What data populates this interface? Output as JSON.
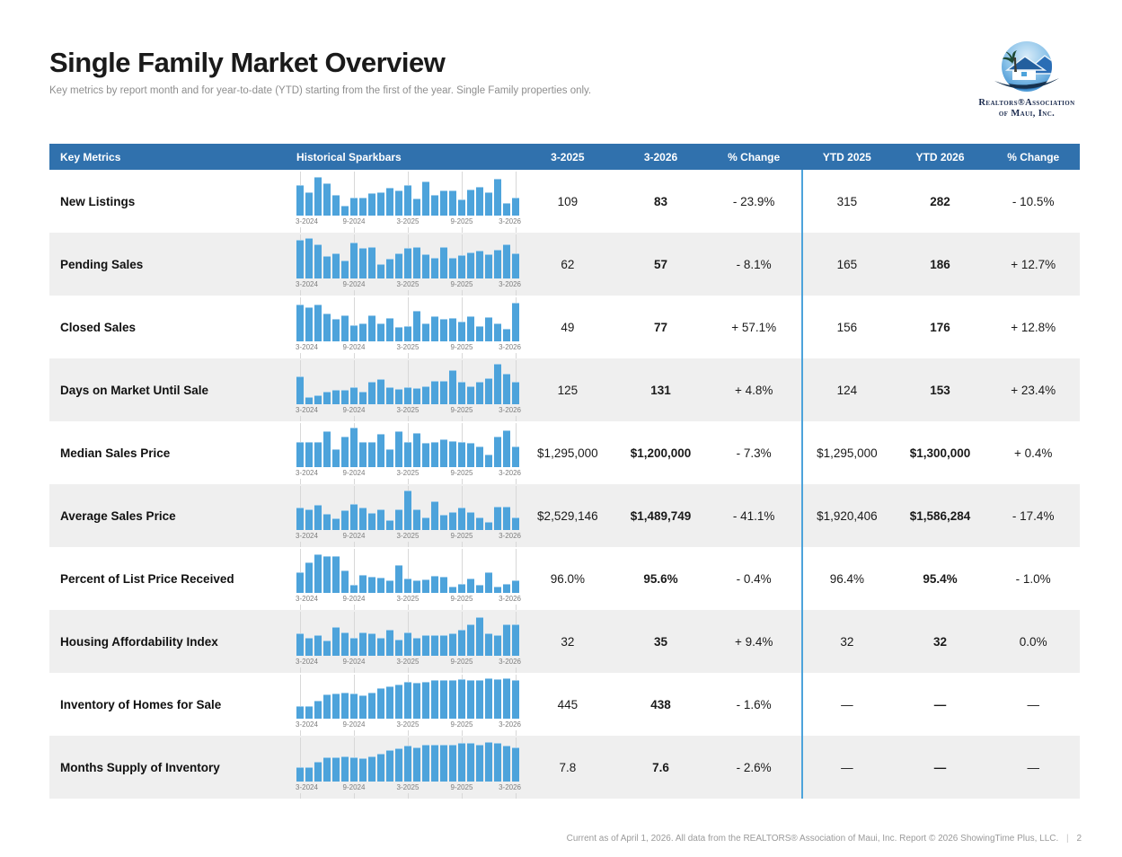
{
  "page": {
    "title": "Single Family Market Overview",
    "subtitle": "Key metrics by report month and for year-to-date (YTD) starting from the first of the year. Single Family properties only.",
    "footer": "Current as of April 1, 2026. All data from the REALTORS® Association of Maui, Inc. Report © 2026 ShowingTime Plus, LLC.",
    "footer_separator": "|",
    "page_number": "2"
  },
  "logo": {
    "line1": "Realtors®Association",
    "line2": "of Maui, Inc."
  },
  "colors": {
    "header_bg": "#3071ad",
    "bar_blue": "#4da3db",
    "row_alt_bg": "#efefef",
    "ytd_divider": "#4da3db"
  },
  "table": {
    "header": [
      "Key Metrics",
      "Historical Sparkbars",
      "3-2025",
      "3-2026",
      "% Change",
      "YTD 2025",
      "YTD 2026",
      "% Change"
    ],
    "spark_axis": [
      "3-2024",
      "9-2024",
      "3-2025",
      "9-2025",
      "3-2026"
    ],
    "rows": [
      {
        "metric": "New Listings",
        "month_prev": "109",
        "month_curr": "83",
        "month_change": "- 23.9%",
        "ytd_prev": "315",
        "ytd_curr": "282",
        "ytd_change": "- 10.5%",
        "spark": [
          0.75,
          0.58,
          0.95,
          0.8,
          0.5,
          0.25,
          0.45,
          0.45,
          0.55,
          0.58,
          0.68,
          0.62,
          0.75,
          0.42,
          0.85,
          0.5,
          0.62,
          0.62,
          0.4,
          0.65,
          0.72,
          0.58,
          0.92,
          0.3,
          0.45
        ]
      },
      {
        "metric": "Pending Sales",
        "month_prev": "62",
        "month_curr": "57",
        "month_change": "- 8.1%",
        "ytd_prev": "165",
        "ytd_curr": "186",
        "ytd_change": "+ 12.7%",
        "spark": [
          0.95,
          1.0,
          0.85,
          0.55,
          0.62,
          0.45,
          0.88,
          0.75,
          0.78,
          0.35,
          0.48,
          0.62,
          0.75,
          0.78,
          0.6,
          0.52,
          0.78,
          0.5,
          0.58,
          0.65,
          0.68,
          0.6,
          0.72,
          0.85,
          0.62
        ]
      },
      {
        "metric": "Closed Sales",
        "month_prev": "49",
        "month_curr": "77",
        "month_change": "+ 57.1%",
        "ytd_prev": "156",
        "ytd_curr": "176",
        "ytd_change": "+ 12.8%",
        "spark": [
          0.92,
          0.85,
          0.9,
          0.7,
          0.55,
          0.65,
          0.4,
          0.45,
          0.65,
          0.45,
          0.58,
          0.35,
          0.38,
          0.75,
          0.45,
          0.62,
          0.55,
          0.58,
          0.48,
          0.62,
          0.38,
          0.6,
          0.45,
          0.3,
          0.95
        ]
      },
      {
        "metric": "Days on Market Until Sale",
        "month_prev": "125",
        "month_curr": "131",
        "month_change": "+ 4.8%",
        "ytd_prev": "124",
        "ytd_curr": "153",
        "ytd_change": "+ 23.4%",
        "spark": [
          0.68,
          0.18,
          0.22,
          0.32,
          0.35,
          0.35,
          0.42,
          0.32,
          0.55,
          0.62,
          0.42,
          0.38,
          0.42,
          0.4,
          0.45,
          0.58,
          0.58,
          0.85,
          0.55,
          0.45,
          0.55,
          0.65,
          1.0,
          0.75,
          0.55
        ]
      },
      {
        "metric": "Median Sales Price",
        "month_prev": "$1,295,000",
        "month_curr": "$1,200,000",
        "month_change": "- 7.3%",
        "ytd_prev": "$1,295,000",
        "ytd_curr": "$1,300,000",
        "ytd_change": "+ 0.4%",
        "spark": [
          0.62,
          0.62,
          0.62,
          0.88,
          0.45,
          0.75,
          0.97,
          0.62,
          0.62,
          0.82,
          0.45,
          0.88,
          0.62,
          0.85,
          0.6,
          0.62,
          0.7,
          0.65,
          0.62,
          0.6,
          0.5,
          0.3,
          0.75,
          0.92,
          0.5
        ]
      },
      {
        "metric": "Average Sales Price",
        "month_prev": "$2,529,146",
        "month_curr": "$1,489,749",
        "month_change": "- 41.1%",
        "ytd_prev": "$1,920,406",
        "ytd_curr": "$1,586,284",
        "ytd_change": "- 17.4%",
        "spark": [
          0.55,
          0.5,
          0.62,
          0.4,
          0.28,
          0.48,
          0.65,
          0.55,
          0.42,
          0.52,
          0.25,
          0.52,
          0.97,
          0.5,
          0.32,
          0.72,
          0.38,
          0.45,
          0.55,
          0.45,
          0.32,
          0.2,
          0.58,
          0.58,
          0.3
        ]
      },
      {
        "metric": "Percent of List Price Received",
        "month_prev": "96.0%",
        "month_curr": "95.6%",
        "month_change": "- 0.4%",
        "ytd_prev": "96.4%",
        "ytd_curr": "95.4%",
        "ytd_change": "- 1.0%",
        "spark": [
          0.5,
          0.75,
          0.95,
          0.92,
          0.92,
          0.55,
          0.2,
          0.45,
          0.4,
          0.38,
          0.3,
          0.7,
          0.35,
          0.3,
          0.33,
          0.42,
          0.4,
          0.15,
          0.22,
          0.35,
          0.2,
          0.5,
          0.15,
          0.22,
          0.32
        ]
      },
      {
        "metric": "Housing Affordability Index",
        "month_prev": "32",
        "month_curr": "35",
        "month_change": "+ 9.4%",
        "ytd_prev": "32",
        "ytd_curr": "32",
        "ytd_change": "0.0%",
        "spark": [
          0.55,
          0.45,
          0.52,
          0.38,
          0.72,
          0.58,
          0.45,
          0.58,
          0.55,
          0.45,
          0.65,
          0.4,
          0.58,
          0.45,
          0.52,
          0.52,
          0.52,
          0.55,
          0.65,
          0.78,
          0.95,
          0.55,
          0.5,
          0.78,
          0.78
        ]
      },
      {
        "metric": "Inventory of Homes for Sale",
        "month_prev": "445",
        "month_curr": "438",
        "month_change": "- 1.6%",
        "ytd_prev": "—",
        "ytd_curr": "—",
        "ytd_change": "—",
        "spark": [
          0.32,
          0.32,
          0.45,
          0.6,
          0.62,
          0.65,
          0.62,
          0.58,
          0.65,
          0.75,
          0.8,
          0.85,
          0.92,
          0.88,
          0.92,
          0.95,
          0.95,
          0.95,
          0.98,
          0.95,
          0.95,
          1.0,
          0.98,
          1.0,
          0.95
        ]
      },
      {
        "metric": "Months Supply of Inventory",
        "month_prev": "7.8",
        "month_curr": "7.6",
        "month_change": "- 2.6%",
        "ytd_prev": "—",
        "ytd_curr": "—",
        "ytd_change": "—",
        "spark": [
          0.35,
          0.35,
          0.48,
          0.6,
          0.6,
          0.62,
          0.6,
          0.58,
          0.62,
          0.7,
          0.78,
          0.82,
          0.88,
          0.85,
          0.9,
          0.92,
          0.92,
          0.92,
          0.95,
          0.95,
          0.92,
          0.98,
          0.95,
          0.88,
          0.85
        ]
      }
    ]
  }
}
